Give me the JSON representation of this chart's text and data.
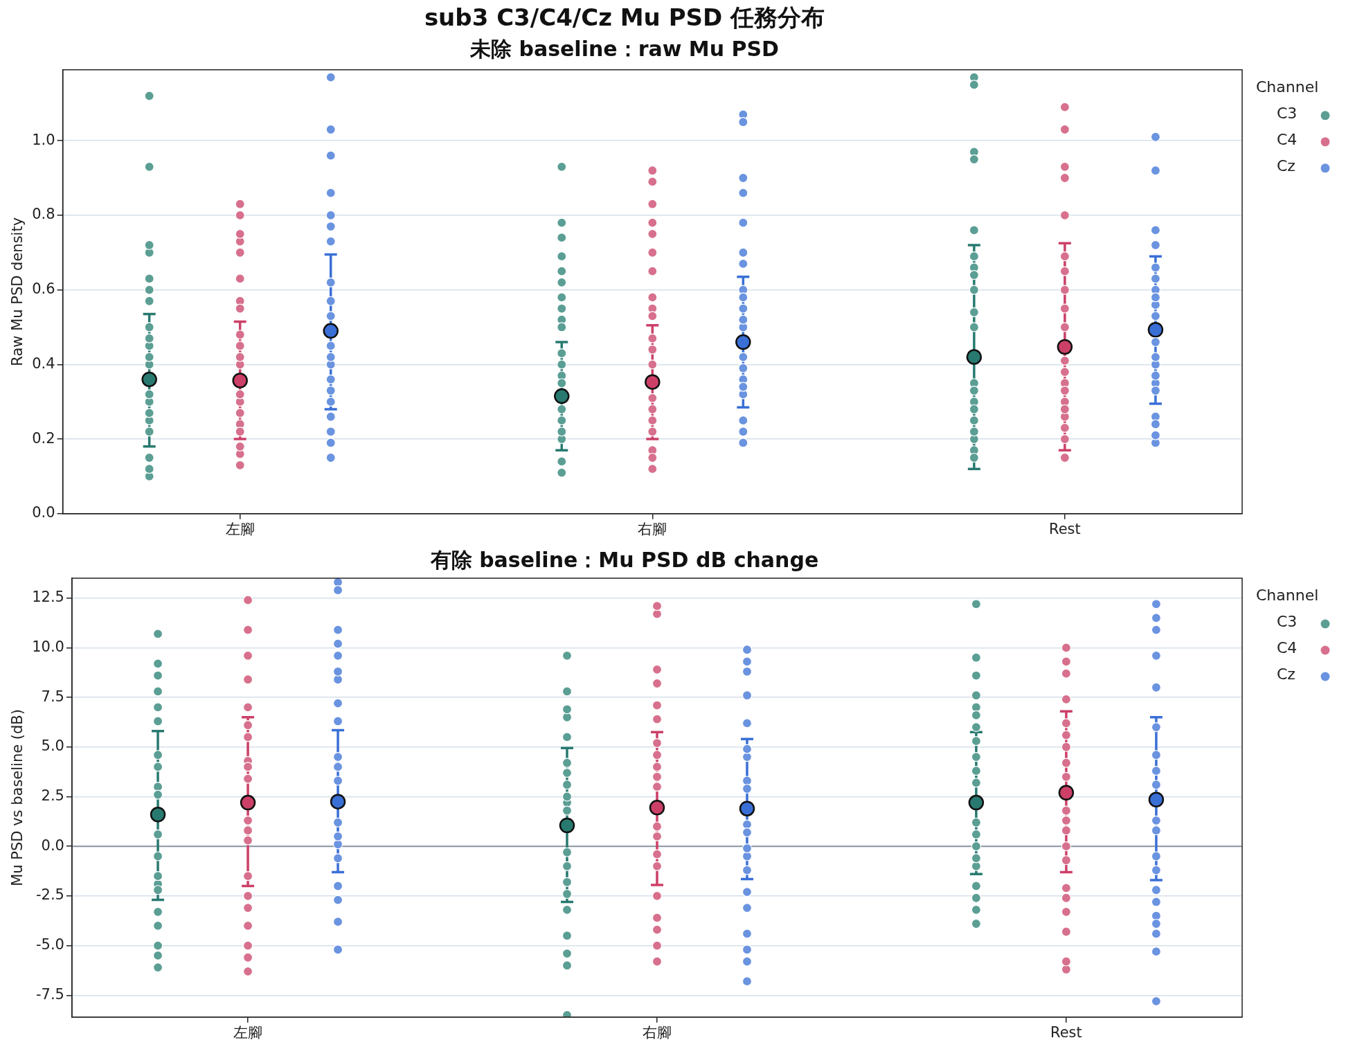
{
  "chart_data": [
    {
      "type": "scatter",
      "title": "sub3 C3/C4/Cz Mu PSD 任務分布",
      "subtitle": "未除 baseline：raw Mu PSD",
      "ylabel": "Raw Mu PSD density",
      "legend_title": "Channel",
      "legend": "right",
      "grid": "y",
      "marker": "circle",
      "categories": [
        "左腳",
        "右腳",
        "Rest"
      ],
      "ylim": [
        0,
        1.19
      ],
      "yticks": [
        {
          "value": 0,
          "label": "0.0"
        },
        {
          "value": 0.2,
          "label": "0.2"
        },
        {
          "value": 0.4,
          "label": "0.4"
        },
        {
          "value": 0.6,
          "label": "0.6"
        },
        {
          "value": 0.8,
          "label": "0.8"
        },
        {
          "value": 1,
          "label": "1.0"
        }
      ],
      "series": [
        {
          "name": "C3",
          "color": "#5b9e94",
          "x": [
            "左腳",
            "左腳",
            "左腳",
            "左腳",
            "左腳",
            "左腳",
            "左腳",
            "左腳",
            "左腳",
            "左腳",
            "左腳",
            "左腳",
            "左腳",
            "左腳",
            "左腳",
            "左腳",
            "左腳",
            "左腳",
            "左腳",
            "左腳",
            "右腳",
            "右腳",
            "右腳",
            "右腳",
            "右腳",
            "右腳",
            "右腳",
            "右腳",
            "右腳",
            "右腳",
            "右腳",
            "右腳",
            "右腳",
            "右腳",
            "右腳",
            "右腳",
            "右腳",
            "右腳",
            "右腳",
            "右腳",
            "Rest",
            "Rest",
            "Rest",
            "Rest",
            "Rest",
            "Rest",
            "Rest",
            "Rest",
            "Rest",
            "Rest",
            "Rest",
            "Rest",
            "Rest",
            "Rest",
            "Rest",
            "Rest",
            "Rest",
            "Rest",
            "Rest",
            "Rest"
          ],
          "values": [
            0.1,
            0.93,
            0.25,
            0.7,
            0.15,
            1.12,
            0.3,
            0.5,
            0.45,
            0.4,
            0.63,
            0.22,
            0.42,
            0.27,
            0.32,
            0.57,
            0.6,
            0.72,
            0.12,
            0.47,
            0.58,
            0.93,
            0.14,
            0.55,
            0.2,
            0.78,
            0.11,
            0.69,
            0.4,
            0.25,
            0.52,
            0.74,
            0.37,
            0.22,
            0.28,
            0.5,
            0.65,
            0.43,
            0.62,
            0.35,
            0.17,
            1.17,
            0.25,
            0.76,
            0.2,
            1.15,
            0.35,
            0.66,
            0.3,
            0.97,
            0.69,
            0.15,
            0.6,
            0.22,
            0.33,
            0.95,
            0.28,
            0.64,
            0.54,
            0.5
          ]
        },
        {
          "name": "C4",
          "color": "#d7708d",
          "x": [
            "左腳",
            "左腳",
            "左腳",
            "左腳",
            "左腳",
            "左腳",
            "左腳",
            "左腳",
            "左腳",
            "左腳",
            "左腳",
            "左腳",
            "左腳",
            "左腳",
            "左腳",
            "左腳",
            "左腳",
            "左腳",
            "左腳",
            "左腳",
            "右腳",
            "右腳",
            "右腳",
            "右腳",
            "右腳",
            "右腳",
            "右腳",
            "右腳",
            "右腳",
            "右腳",
            "右腳",
            "右腳",
            "右腳",
            "右腳",
            "右腳",
            "右腳",
            "右腳",
            "右腳",
            "右腳",
            "右腳",
            "Rest",
            "Rest",
            "Rest",
            "Rest",
            "Rest",
            "Rest",
            "Rest",
            "Rest",
            "Rest",
            "Rest",
            "Rest",
            "Rest",
            "Rest",
            "Rest",
            "Rest",
            "Rest",
            "Rest",
            "Rest",
            "Rest",
            "Rest"
          ],
          "values": [
            0.24,
            0.8,
            0.16,
            0.57,
            0.13,
            0.73,
            0.3,
            0.55,
            0.27,
            0.7,
            0.63,
            0.18,
            0.45,
            0.22,
            0.4,
            0.75,
            0.48,
            0.42,
            0.32,
            0.83,
            0.44,
            0.89,
            0.17,
            0.55,
            0.15,
            0.92,
            0.31,
            0.83,
            0.4,
            0.25,
            0.58,
            0.12,
            0.47,
            0.65,
            0.28,
            0.22,
            0.53,
            0.75,
            0.78,
            0.7,
            0.38,
            0.93,
            0.2,
            0.8,
            0.26,
            1.03,
            0.35,
            0.9,
            0.5,
            0.23,
            0.41,
            0.3,
            0.65,
            0.15,
            1.09,
            0.6,
            0.28,
            0.69,
            0.33,
            0.55
          ]
        },
        {
          "name": "Cz",
          "color": "#6a93e0",
          "x": [
            "左腳",
            "左腳",
            "左腳",
            "左腳",
            "左腳",
            "左腳",
            "左腳",
            "左腳",
            "左腳",
            "左腳",
            "左腳",
            "左腳",
            "左腳",
            "左腳",
            "左腳",
            "左腳",
            "左腳",
            "左腳",
            "左腳",
            "左腳",
            "右腳",
            "右腳",
            "右腳",
            "右腳",
            "右腳",
            "右腳",
            "右腳",
            "右腳",
            "右腳",
            "右腳",
            "右腳",
            "右腳",
            "右腳",
            "右腳",
            "右腳",
            "右腳",
            "右腳",
            "右腳",
            "右腳",
            "右腳",
            "Rest",
            "Rest",
            "Rest",
            "Rest",
            "Rest",
            "Rest",
            "Rest",
            "Rest",
            "Rest",
            "Rest",
            "Rest",
            "Rest",
            "Rest",
            "Rest",
            "Rest",
            "Rest",
            "Rest",
            "Rest",
            "Rest",
            "Rest"
          ],
          "values": [
            0.26,
            1.03,
            0.45,
            0.86,
            0.33,
            0.15,
            0.53,
            0.77,
            0.4,
            0.96,
            0.62,
            0.22,
            1.17,
            0.19,
            0.57,
            0.73,
            0.36,
            0.8,
            0.3,
            0.42,
            0.32,
            0.9,
            0.5,
            1.07,
            0.36,
            0.22,
            0.42,
            0.86,
            0.55,
            0.25,
            0.78,
            0.39,
            0.6,
            0.34,
            1.05,
            0.7,
            0.67,
            0.19,
            0.52,
            0.58,
            0.46,
            1.01,
            0.26,
            0.76,
            0.6,
            0.4,
            0.53,
            0.72,
            0.35,
            0.19,
            0.66,
            0.33,
            0.92,
            0.56,
            0.42,
            0.37,
            0.24,
            0.63,
            0.58,
            0.21
          ]
        },
        {
          "color": "#287a70",
          "x": [
            "左腳",
            "右腳",
            "Rest"
          ],
          "values": [
            0.36,
            0.315,
            0.42
          ],
          "errors": [
            [
              0.18,
              0.535
            ],
            [
              0.17,
              0.46
            ],
            [
              0.12,
              0.72
            ]
          ]
        },
        {
          "color": "#cc4068",
          "x": [
            "左腳",
            "右腳",
            "Rest"
          ],
          "values": [
            0.357,
            0.353,
            0.447
          ],
          "errors": [
            [
              0.2,
              0.515
            ],
            [
              0.2,
              0.505
            ],
            [
              0.17,
              0.725
            ]
          ]
        },
        {
          "color": "#3a6fd6",
          "x": [
            "左腳",
            "右腳",
            "Rest"
          ],
          "values": [
            0.49,
            0.46,
            0.493
          ],
          "errors": [
            [
              0.28,
              0.695
            ],
            [
              0.285,
              0.635
            ],
            [
              0.295,
              0.69
            ]
          ]
        }
      ]
    },
    {
      "type": "scatter",
      "title": "有除 baseline：Mu PSD dB change",
      "ylabel": "Mu PSD vs baseline (dB)",
      "legend_title": "Channel",
      "legend": "right",
      "grid": "y",
      "marker": "circle",
      "categories": [
        "左腳",
        "右腳",
        "Rest"
      ],
      "ylim": [
        -8.6,
        13.5
      ],
      "yticks": [
        {
          "value": -7.5,
          "label": "-7.5"
        },
        {
          "value": -5,
          "label": "-5.0"
        },
        {
          "value": -2.5,
          "label": "-2.5"
        },
        {
          "value": 0,
          "label": "0.0"
        },
        {
          "value": 2.5,
          "label": "2.5"
        },
        {
          "value": 5,
          "label": "5.0"
        },
        {
          "value": 7.5,
          "label": "7.5"
        },
        {
          "value": 10,
          "label": "10.0"
        },
        {
          "value": 12.5,
          "label": "12.5"
        }
      ],
      "ref_lines": [
        {
          "axis": "y",
          "value": 0,
          "color": "#8c96a0"
        }
      ],
      "series": [
        {
          "name": "C3",
          "color": "#5b9e94",
          "x": [
            "左腳",
            "左腳",
            "左腳",
            "左腳",
            "左腳",
            "左腳",
            "左腳",
            "左腳",
            "左腳",
            "左腳",
            "左腳",
            "左腳",
            "左腳",
            "左腳",
            "左腳",
            "左腳",
            "左腳",
            "左腳",
            "左腳",
            "左腳",
            "右腳",
            "右腳",
            "右腳",
            "右腳",
            "右腳",
            "右腳",
            "右腳",
            "右腳",
            "右腳",
            "右腳",
            "右腳",
            "右腳",
            "右腳",
            "右腳",
            "右腳",
            "右腳",
            "右腳",
            "右腳",
            "右腳",
            "右腳",
            "Rest",
            "Rest",
            "Rest",
            "Rest",
            "Rest",
            "Rest",
            "Rest",
            "Rest",
            "Rest",
            "Rest",
            "Rest",
            "Rest",
            "Rest",
            "Rest",
            "Rest",
            "Rest",
            "Rest",
            "Rest",
            "Rest",
            "Rest"
          ],
          "values": [
            -1.9,
            9.2,
            -6.1,
            10.7,
            -4,
            8.6,
            0.6,
            -5.5,
            4,
            -2.2,
            4.6,
            -3.3,
            6.3,
            3,
            7,
            -5,
            -0.5,
            2.6,
            7.8,
            -1.5,
            2.2,
            9.6,
            -2.4,
            7.8,
            -5.4,
            6.5,
            3.1,
            -0.3,
            -1,
            3.7,
            5.5,
            -4.5,
            1.8,
            -3.2,
            -8.5,
            -6,
            2.5,
            4.2,
            -1.8,
            6.9,
            7.6,
            12.2,
            -3.9,
            9.5,
            -1,
            3.8,
            3.2,
            6,
            -3.2,
            0,
            5.3,
            -2,
            1.2,
            4.5,
            7,
            8.6,
            -0.6,
            6.6,
            -2.6,
            0.6
          ]
        },
        {
          "name": "C4",
          "color": "#d7708d",
          "x": [
            "左腳",
            "左腳",
            "左腳",
            "左腳",
            "左腳",
            "左腳",
            "左腳",
            "左腳",
            "左腳",
            "左腳",
            "左腳",
            "左腳",
            "左腳",
            "左腳",
            "左腳",
            "左腳",
            "左腳",
            "左腳",
            "左腳",
            "左腳",
            "右腳",
            "右腳",
            "右腳",
            "右腳",
            "右腳",
            "右腳",
            "右腳",
            "右腳",
            "右腳",
            "右腳",
            "右腳",
            "右腳",
            "右腳",
            "右腳",
            "右腳",
            "右腳",
            "右腳",
            "右腳",
            "右腳",
            "右腳",
            "Rest",
            "Rest",
            "Rest",
            "Rest",
            "Rest",
            "Rest",
            "Rest",
            "Rest",
            "Rest",
            "Rest",
            "Rest",
            "Rest",
            "Rest",
            "Rest",
            "Rest",
            "Rest",
            "Rest",
            "Rest",
            "Rest",
            "Rest"
          ],
          "values": [
            1.3,
            12.4,
            -6.3,
            9.6,
            -5,
            8.4,
            3.4,
            0.8,
            -3.1,
            10.9,
            4.3,
            -2.5,
            6.1,
            -1.5,
            4,
            -5.6,
            0.3,
            7,
            5.5,
            -4,
            -0.4,
            11.7,
            -5.8,
            12.1,
            -2.5,
            6.4,
            1,
            7.1,
            -4.2,
            4.6,
            5.2,
            -1,
            3,
            8.2,
            -3.6,
            0.5,
            3.5,
            8.9,
            -5,
            4,
            -2.1,
            10,
            -6.2,
            8.7,
            -3.3,
            6.2,
            1.8,
            -2.6,
            0.8,
            -4.3,
            5,
            9.3,
            1.3,
            -0.7,
            3.5,
            7.4,
            -5.8,
            0,
            4.2,
            5.6
          ]
        },
        {
          "name": "Cz",
          "color": "#6a93e0",
          "x": [
            "左腳",
            "左腳",
            "左腳",
            "左腳",
            "左腳",
            "左腳",
            "左腳",
            "左腳",
            "左腳",
            "左腳",
            "左腳",
            "左腳",
            "左腳",
            "左腳",
            "左腳",
            "左腳",
            "左腳",
            "左腳",
            "左腳",
            "左腳",
            "右腳",
            "右腳",
            "右腳",
            "右腳",
            "右腳",
            "右腳",
            "右腳",
            "右腳",
            "右腳",
            "右腳",
            "右腳",
            "右腳",
            "右腳",
            "右腳",
            "右腳",
            "右腳",
            "右腳",
            "右腳",
            "右腳",
            "右腳",
            "Rest",
            "Rest",
            "Rest",
            "Rest",
            "Rest",
            "Rest",
            "Rest",
            "Rest",
            "Rest",
            "Rest",
            "Rest",
            "Rest",
            "Rest",
            "Rest",
            "Rest",
            "Rest",
            "Rest",
            "Rest",
            "Rest",
            "Rest"
          ],
          "values": [
            0.1,
            13.3,
            -0.6,
            10.2,
            -3.8,
            10.9,
            7.2,
            12.9,
            8.4,
            -2,
            3.3,
            -5.2,
            4.5,
            1.2,
            6.3,
            -2.7,
            0.5,
            8.8,
            9.6,
            4,
            -1.2,
            8.8,
            -5.8,
            9.9,
            -0.5,
            -6.8,
            -0.1,
            9.3,
            -4.4,
            3.3,
            7.6,
            -2.3,
            4.5,
            1.1,
            6.2,
            -5.2,
            0.7,
            -3.1,
            4.9,
            2.9,
            -2.8,
            11.5,
            -3.5,
            12.2,
            -5.3,
            -4.4,
            3.1,
            9.6,
            -7.8,
            4.6,
            8,
            -1.2,
            1.3,
            -3.9,
            6,
            10.9,
            -0.5,
            -2.2,
            3.8,
            0.8
          ]
        },
        {
          "color": "#287a70",
          "x": [
            "左腳",
            "右腳",
            "Rest"
          ],
          "values": [
            1.6,
            1.05,
            2.2
          ],
          "errors": [
            [
              -2.7,
              5.8
            ],
            [
              -2.8,
              4.95
            ],
            [
              -1.4,
              5.75
            ]
          ]
        },
        {
          "color": "#cc4068",
          "x": [
            "左腳",
            "右腳",
            "Rest"
          ],
          "values": [
            2.2,
            1.95,
            2.7
          ],
          "errors": [
            [
              -2,
              6.5
            ],
            [
              -1.95,
              5.75
            ],
            [
              -1.3,
              6.8
            ]
          ]
        },
        {
          "color": "#3a6fd6",
          "x": [
            "左腳",
            "右腳",
            "Rest"
          ],
          "values": [
            2.25,
            1.9,
            2.35
          ],
          "errors": [
            [
              -1.3,
              5.85
            ],
            [
              -1.65,
              5.4
            ],
            [
              -1.7,
              6.5
            ]
          ]
        }
      ]
    }
  ]
}
